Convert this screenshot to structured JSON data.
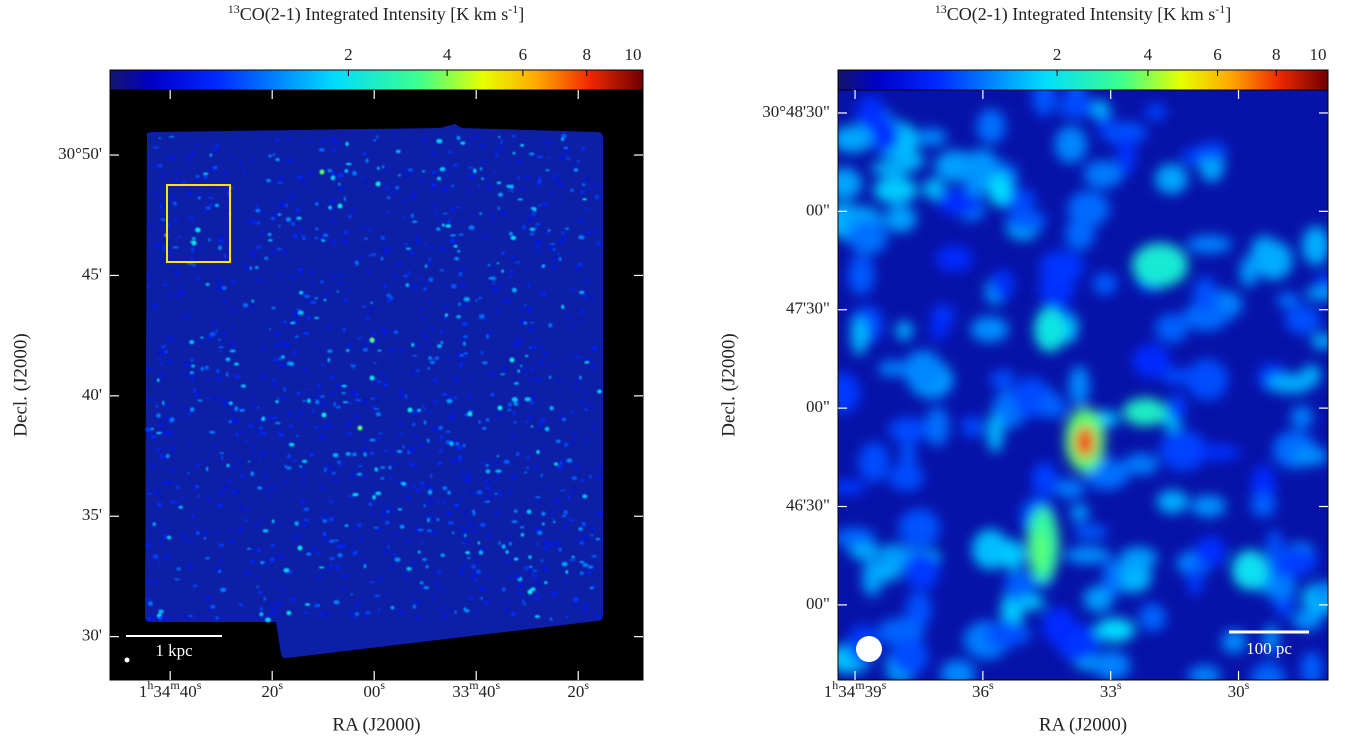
{
  "chart_data": [
    {
      "type": "image",
      "title_parts": [
        "13",
        "CO(2-1) Integrated Intensity  [K km s",
        "-1",
        "]"
      ],
      "colormap": "jet",
      "colorbar": {
        "lim": [
          0,
          10
        ],
        "ticks": [
          2,
          4,
          6,
          8,
          10
        ],
        "scale": "sqrt"
      },
      "xlabel": "RA (J2000)",
      "ylabel": "Decl. (J2000)",
      "xlim": [
        51.8,
        -52.7
      ],
      "xticks": [
        {
          "value": 40,
          "label": "1h34m40s"
        },
        {
          "value": 20,
          "label": "20s"
        },
        {
          "value": 0,
          "label": "00s"
        },
        {
          "value": -20,
          "label": "33m40s"
        },
        {
          "value": -40,
          "label": "20s"
        }
      ],
      "ylim": [
        28.2,
        52.7
      ],
      "yticks": [
        {
          "value": 50,
          "label": "30°50'"
        },
        {
          "value": 45,
          "label": "45'"
        },
        {
          "value": 40,
          "label": "40'"
        },
        {
          "value": 35,
          "label": "35'"
        },
        {
          "value": 30,
          "label": "30'"
        }
      ],
      "scale_bar": "1 kpc"
    },
    {
      "type": "image",
      "title_parts": [
        "13",
        "CO(2-1) Integrated Intensity  [K km s",
        "-1",
        "]"
      ],
      "colormap": "jet",
      "colorbar": {
        "lim": [
          0,
          10
        ],
        "ticks": [
          2,
          4,
          6,
          8,
          10
        ],
        "scale": "sqrt"
      },
      "xlabel": "RA (J2000)",
      "ylabel": "Decl. (J2000)",
      "xlim": [
        39.4,
        27.9
      ],
      "xticks": [
        {
          "value": 39,
          "label": "1h34m39s"
        },
        {
          "value": 36,
          "label": "36s"
        },
        {
          "value": 33,
          "label": "33s"
        },
        {
          "value": 30,
          "label": "30s"
        }
      ],
      "ylim": [
        -22.9,
        157
      ],
      "yticks": [
        {
          "value": 150,
          "label": "30°48'30\""
        },
        {
          "value": 120,
          "label": "00\""
        },
        {
          "value": 90,
          "label": "47'30\""
        },
        {
          "value": 60,
          "label": "00\""
        },
        {
          "value": 30,
          "label": "46'30\""
        },
        {
          "value": 0,
          "label": "00\""
        }
      ],
      "scale_bar": "100 pc"
    }
  ]
}
